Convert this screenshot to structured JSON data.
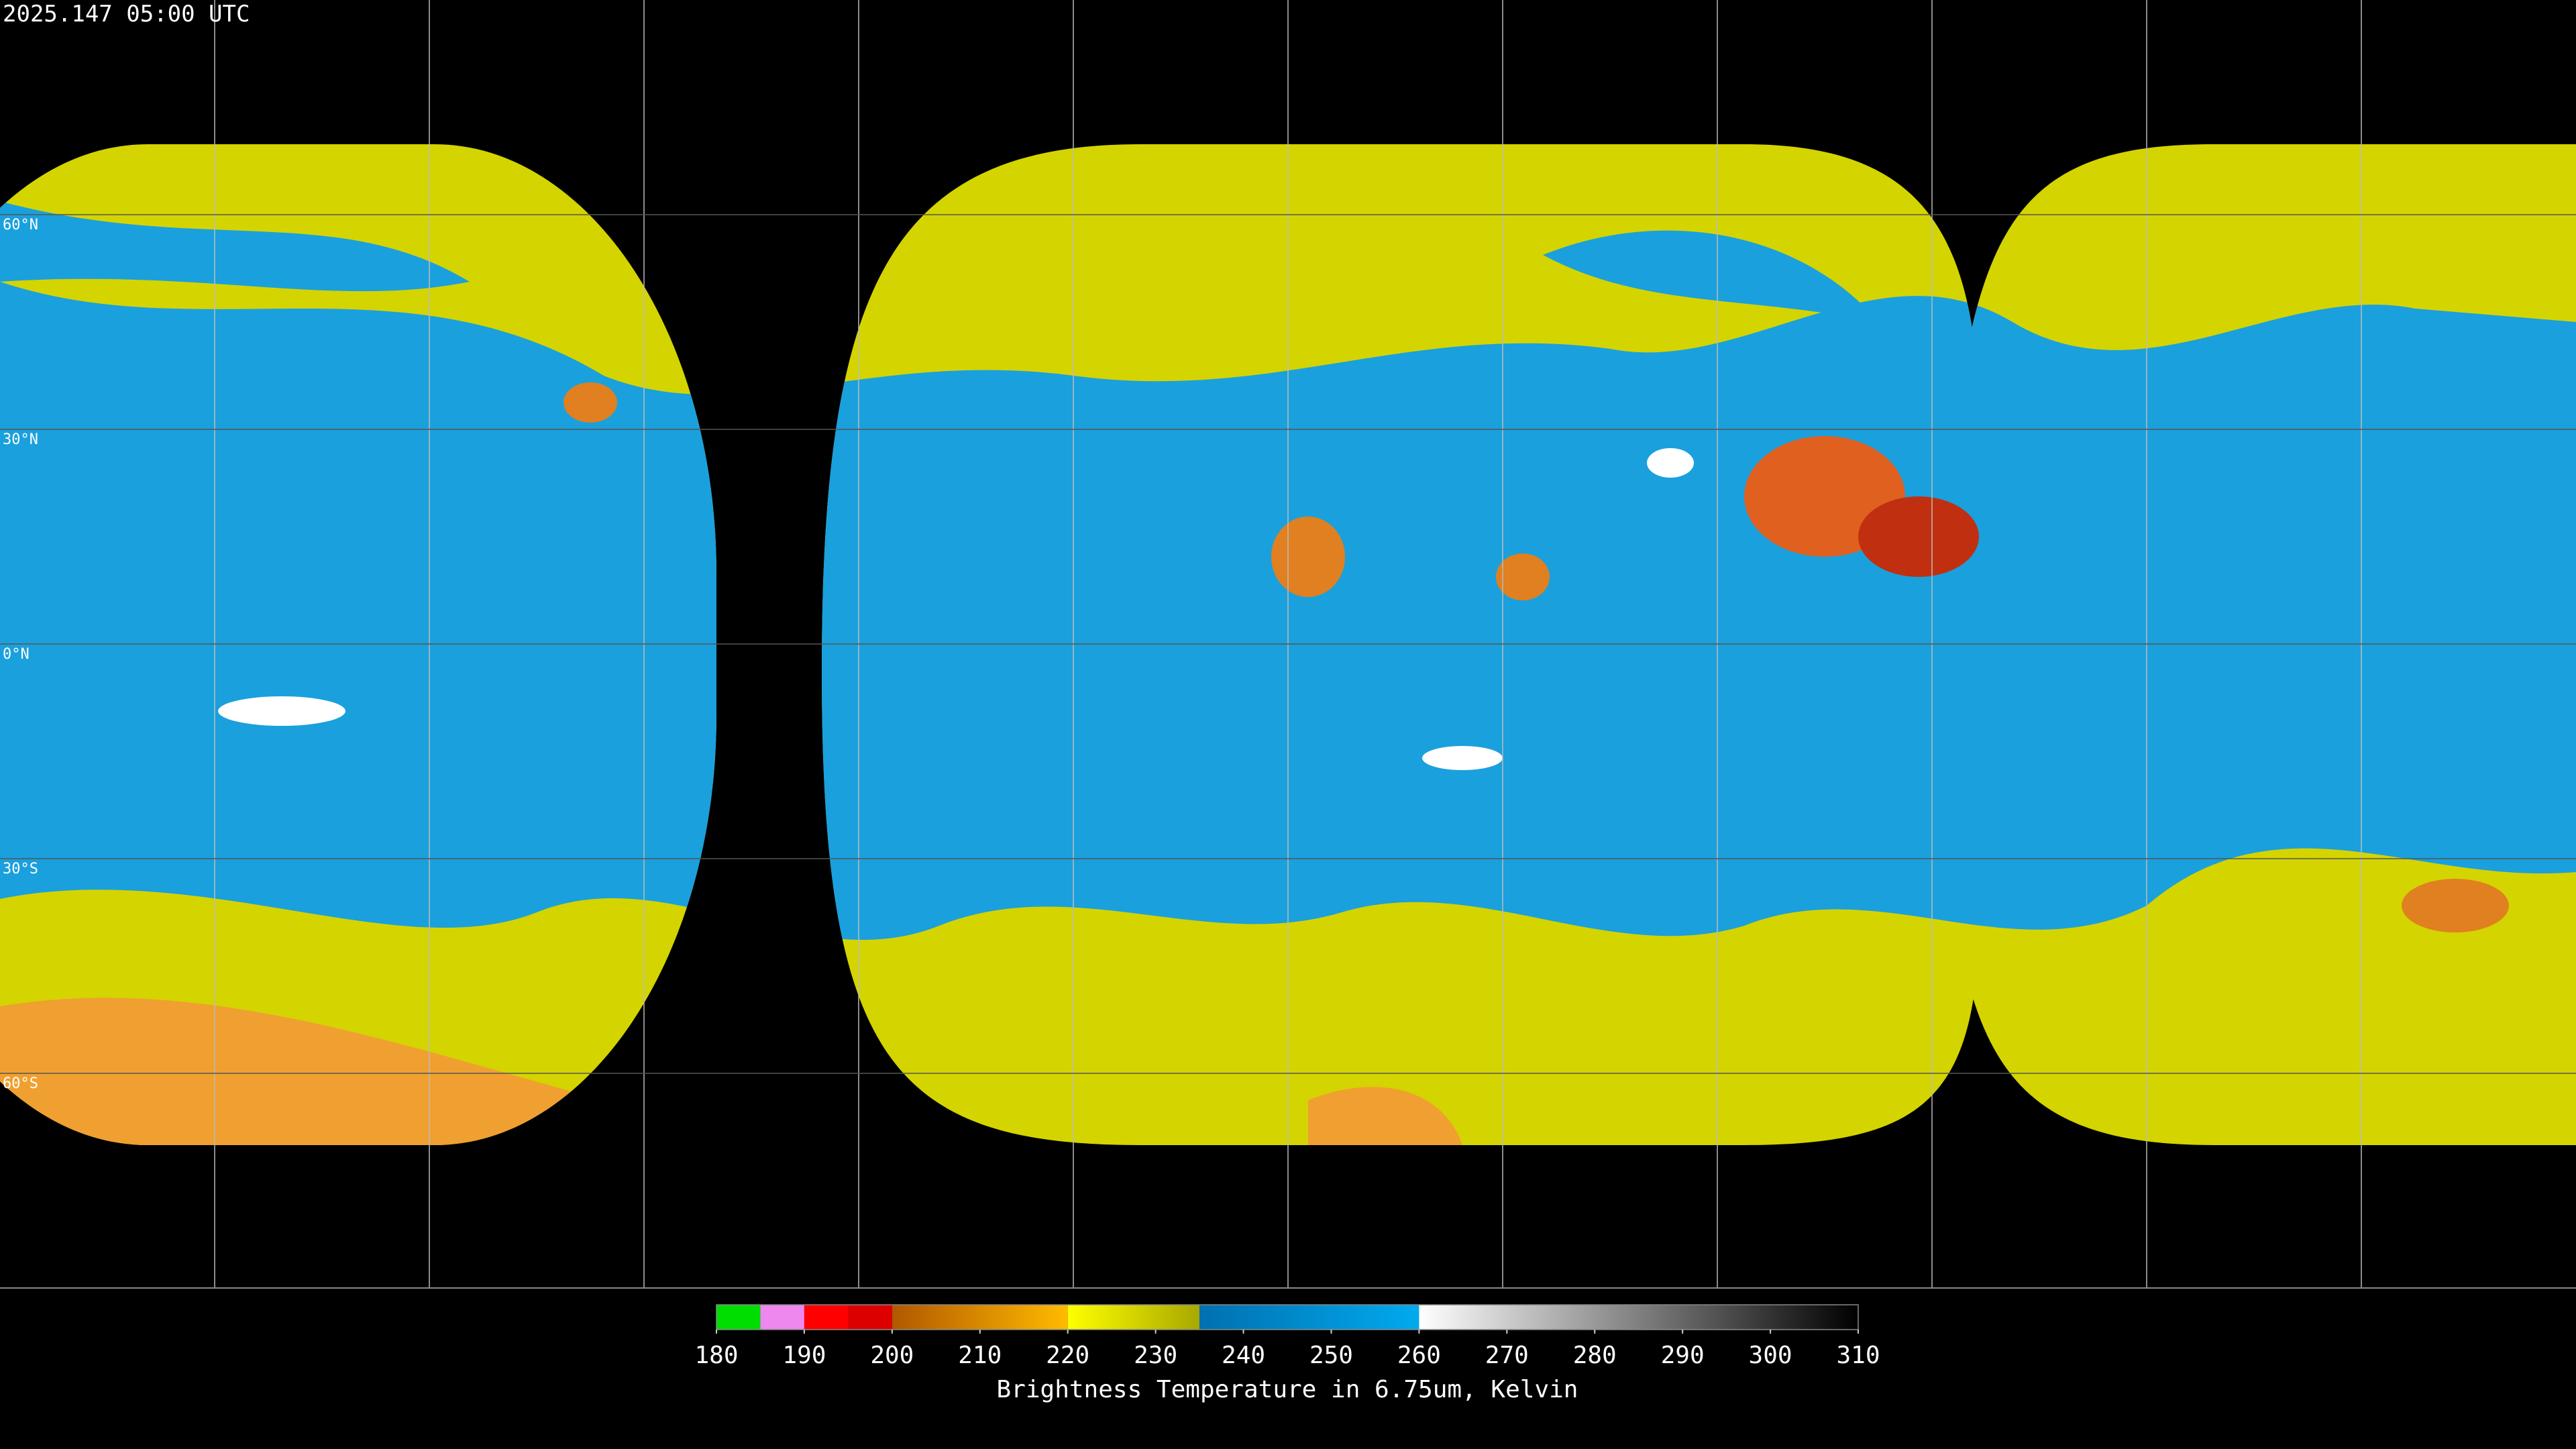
{
  "timestamp": "2025.147 05:00 UTC",
  "lat_labels": [
    "60°N",
    "30°N",
    "0°N",
    "30°S",
    "60°S"
  ],
  "colorbar": {
    "title": "Brightness Temperature in 6.75um, Kelvin",
    "lim": [
      180,
      310
    ],
    "ticks": [
      180,
      190,
      200,
      210,
      220,
      230,
      240,
      250,
      260,
      270,
      280,
      290,
      300,
      310
    ],
    "segments": [
      {
        "range": [
          180,
          185
        ],
        "colors": [
          "#00dd00",
          "#00dd00"
        ]
      },
      {
        "range": [
          185,
          190
        ],
        "colors": [
          "#ee88ee",
          "#ee88ee"
        ]
      },
      {
        "range": [
          190,
          195
        ],
        "colors": [
          "#ff0000",
          "#ff0000"
        ]
      },
      {
        "range": [
          195,
          200
        ],
        "colors": [
          "#dd0000",
          "#dd0000"
        ]
      },
      {
        "range": [
          200,
          220
        ],
        "colors": [
          "#b05800",
          "#ffbb00"
        ]
      },
      {
        "range": [
          220,
          235
        ],
        "colors": [
          "#ffff00",
          "#a8a800"
        ]
      },
      {
        "range": [
          235,
          260
        ],
        "colors": [
          "#0070b0",
          "#00aaee"
        ]
      },
      {
        "range": [
          260,
          310
        ],
        "colors": [
          "#ffffff",
          "#000000"
        ]
      }
    ]
  }
}
